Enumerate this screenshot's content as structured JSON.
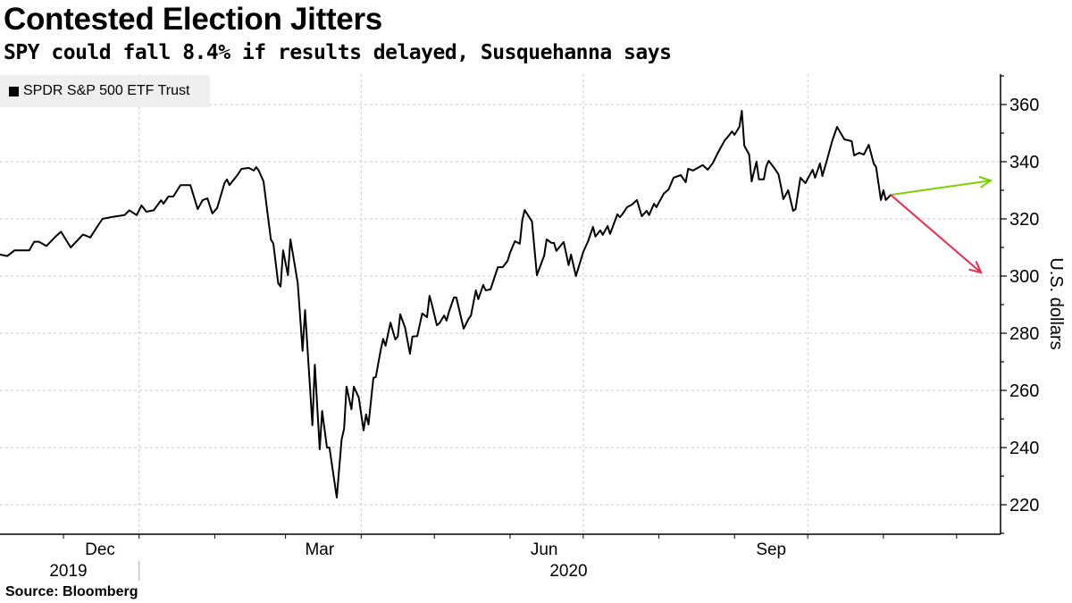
{
  "title": "Contested Election Jitters",
  "subtitle": "SPY could fall 8.4% if results delayed, Susquehanna says",
  "source": "Source: Bloomberg",
  "colors": {
    "line": "#000000",
    "up_arrow": "#7ed000",
    "down_arrow": "#f0284c",
    "grid": "#c8c8c8",
    "legend_bg": "#efefef"
  },
  "chart_data": {
    "type": "line",
    "title": "Contested Election Jitters",
    "subtitle": "SPY could fall 8.4% if results delayed, Susquehanna says",
    "x_unit": "days since 2019-11-05",
    "xlim": [
      0,
      410
    ],
    "ylim": [
      210,
      370
    ],
    "ylabel": "U.S. dollars",
    "yticks": [
      220,
      240,
      260,
      280,
      300,
      320,
      340,
      360
    ],
    "grid": true,
    "legend": {
      "position": "top-left",
      "entries": [
        "SPDR S&P 500 ETF Trust"
      ]
    },
    "month_ticks": [
      26,
      57,
      88,
      117,
      148,
      178,
      209,
      239,
      270,
      301,
      331,
      362,
      392
    ],
    "gridline_days": [
      57,
      148,
      239,
      331
    ],
    "month_labels": [
      {
        "label": "Dec",
        "day": 41
      },
      {
        "label": "Mar",
        "day": 131
      },
      {
        "label": "Jun",
        "day": 223
      },
      {
        "label": "Sep",
        "day": 316
      }
    ],
    "year_labels": [
      {
        "label": "2019",
        "day": 28
      },
      {
        "label": "2020",
        "day": 233
      }
    ],
    "year_divider_day": 57,
    "series": [
      {
        "name": "SPDR S&P 500 ETF Trust",
        "points": [
          [
            0,
            307.5
          ],
          [
            3,
            307
          ],
          [
            6,
            309
          ],
          [
            12,
            309
          ],
          [
            14,
            312
          ],
          [
            16,
            312
          ],
          [
            19,
            310.5
          ],
          [
            23,
            314
          ],
          [
            25,
            315.5
          ],
          [
            29,
            310
          ],
          [
            34,
            314.5
          ],
          [
            37,
            313.5
          ],
          [
            40,
            317.5
          ],
          [
            42,
            320
          ],
          [
            46,
            320.7
          ],
          [
            51,
            321.3
          ],
          [
            53,
            323
          ],
          [
            56,
            321.3
          ],
          [
            58,
            324.7
          ],
          [
            60,
            322.5
          ],
          [
            63,
            323
          ],
          [
            66,
            326.5
          ],
          [
            67,
            325.3
          ],
          [
            69,
            327.8
          ],
          [
            71,
            327.8
          ],
          [
            74,
            331.8
          ],
          [
            78,
            331.8
          ],
          [
            81,
            323.4
          ],
          [
            83,
            326.5
          ],
          [
            85,
            327.2
          ],
          [
            87,
            321.9
          ],
          [
            89,
            323.8
          ],
          [
            92,
            332.5
          ],
          [
            93,
            333.8
          ],
          [
            94,
            331.8
          ],
          [
            97,
            335
          ],
          [
            99,
            337.5
          ],
          [
            102,
            337.8
          ],
          [
            104,
            336.9
          ],
          [
            105,
            338.1
          ],
          [
            106,
            336.9
          ],
          [
            108,
            333.1
          ],
          [
            111,
            312.8
          ],
          [
            112,
            311.3
          ],
          [
            114,
            297.5
          ],
          [
            115,
            296.3
          ],
          [
            116,
            309
          ],
          [
            118,
            300.3
          ],
          [
            119,
            312.8
          ],
          [
            121,
            302.8
          ],
          [
            122,
            297.5
          ],
          [
            124,
            273.8
          ],
          [
            125,
            288.1
          ],
          [
            128,
            247.8
          ],
          [
            129,
            269
          ],
          [
            131,
            239.4
          ],
          [
            132,
            252.8
          ],
          [
            134,
            240
          ],
          [
            135,
            240
          ],
          [
            137,
            228.4
          ],
          [
            138,
            222.5
          ],
          [
            140,
            242.8
          ],
          [
            141,
            246.6
          ],
          [
            142,
            261.3
          ],
          [
            144,
            253.4
          ],
          [
            145,
            261.3
          ],
          [
            147,
            257.5
          ],
          [
            149,
            246
          ],
          [
            150,
            251.6
          ],
          [
            151,
            248.1
          ],
          [
            153,
            264.4
          ],
          [
            154,
            264.7
          ],
          [
            156,
            274
          ],
          [
            157,
            278
          ],
          [
            158,
            275.6
          ],
          [
            160,
            283.7
          ],
          [
            162,
            277.8
          ],
          [
            163,
            278.8
          ],
          [
            164,
            286.6
          ],
          [
            166,
            281.9
          ],
          [
            168,
            272.8
          ],
          [
            169,
            278.8
          ],
          [
            171,
            279
          ],
          [
            173,
            286.9
          ],
          [
            175,
            285.6
          ],
          [
            176,
            293.1
          ],
          [
            177,
            290
          ],
          [
            179,
            282.8
          ],
          [
            180,
            283.4
          ],
          [
            182,
            286.2
          ],
          [
            183,
            284.4
          ],
          [
            184,
            287.5
          ],
          [
            186,
            292.5
          ],
          [
            187,
            292.5
          ],
          [
            190,
            281.6
          ],
          [
            192,
            285
          ],
          [
            193,
            286.2
          ],
          [
            195,
            295
          ],
          [
            196,
            291.9
          ],
          [
            198,
            296.9
          ],
          [
            199,
            295
          ],
          [
            201,
            295.3
          ],
          [
            204,
            303.1
          ],
          [
            206,
            303.1
          ],
          [
            208,
            305.3
          ],
          [
            209,
            308.1
          ],
          [
            211,
            312.2
          ],
          [
            213,
            311.3
          ],
          [
            214,
            319.4
          ],
          [
            215,
            323.1
          ],
          [
            218,
            319.1
          ],
          [
            220,
            300.3
          ],
          [
            223,
            307.2
          ],
          [
            224,
            312.8
          ],
          [
            226,
            311.6
          ],
          [
            227,
            311.6
          ],
          [
            228,
            308.8
          ],
          [
            231,
            311.9
          ],
          [
            233,
            303.8
          ],
          [
            234,
            307.5
          ],
          [
            236,
            300
          ],
          [
            239,
            308.4
          ],
          [
            241,
            312.2
          ],
          [
            243,
            317.2
          ],
          [
            244,
            313.8
          ],
          [
            246,
            316
          ],
          [
            247,
            314.4
          ],
          [
            249,
            317.5
          ],
          [
            250,
            314.7
          ],
          [
            253,
            321.6
          ],
          [
            254,
            320.6
          ],
          [
            255,
            321.6
          ],
          [
            257,
            324.1
          ],
          [
            259,
            325
          ],
          [
            261,
            326.6
          ],
          [
            263,
            320.9
          ],
          [
            265,
            322.8
          ],
          [
            266,
            321.3
          ],
          [
            268,
            325.3
          ],
          [
            269,
            324.1
          ],
          [
            272,
            328.8
          ],
          [
            274,
            330.3
          ],
          [
            276,
            334.4
          ],
          [
            279,
            335.3
          ],
          [
            281,
            332.8
          ],
          [
            282,
            337.5
          ],
          [
            284,
            336.9
          ],
          [
            288,
            338.8
          ],
          [
            290,
            337.2
          ],
          [
            292,
            339.4
          ],
          [
            294,
            342.8
          ],
          [
            295,
            344.4
          ],
          [
            297,
            347.5
          ],
          [
            298,
            348.4
          ],
          [
            300,
            350.6
          ],
          [
            301,
            349.4
          ],
          [
            303,
            352.2
          ],
          [
            304,
            357.8
          ],
          [
            305,
            345.6
          ],
          [
            307,
            342.5
          ],
          [
            308,
            333.1
          ],
          [
            310,
            340
          ],
          [
            311,
            333.8
          ],
          [
            313,
            333.8
          ],
          [
            314,
            338.4
          ],
          [
            315,
            340.3
          ],
          [
            317,
            338.1
          ],
          [
            319,
            335.6
          ],
          [
            320,
            331.6
          ],
          [
            321,
            326.9
          ],
          [
            323,
            330
          ],
          [
            325,
            322.8
          ],
          [
            326,
            323.4
          ],
          [
            328,
            334.4
          ],
          [
            330,
            332.5
          ],
          [
            333,
            337.2
          ],
          [
            334,
            334.4
          ],
          [
            336,
            339.4
          ],
          [
            337,
            335
          ],
          [
            339,
            340.9
          ],
          [
            341,
            347.2
          ],
          [
            343,
            352.2
          ],
          [
            346,
            347.8
          ],
          [
            349,
            347.2
          ],
          [
            350,
            342.2
          ],
          [
            352,
            343.1
          ],
          [
            354,
            342.5
          ],
          [
            356,
            345.9
          ],
          [
            358,
            339.4
          ],
          [
            359,
            338.1
          ],
          [
            361,
            326.6
          ],
          [
            362,
            330
          ],
          [
            363,
            326.6
          ],
          [
            365,
            328.4
          ]
        ]
      }
    ],
    "annotations": [
      {
        "type": "arrow",
        "label": "up scenario",
        "from": [
          365,
          328.4
        ],
        "to": [
          406,
          333.4
        ],
        "color": "#7ed000"
      },
      {
        "type": "arrow",
        "label": "down scenario (-8.4%)",
        "from": [
          365,
          328.4
        ],
        "to": [
          402,
          301.2
        ],
        "color": "#f0284c"
      }
    ]
  }
}
